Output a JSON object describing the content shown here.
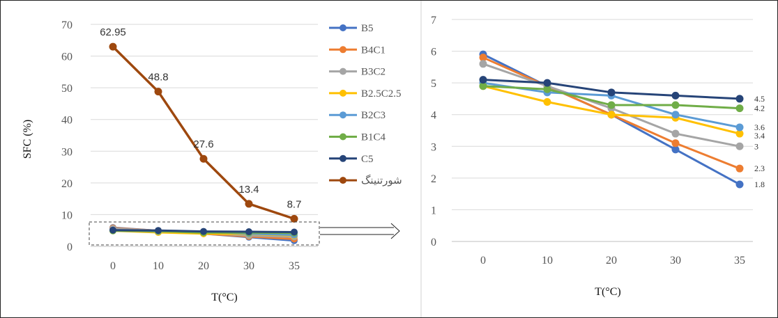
{
  "chart_data": [
    {
      "type": "line",
      "title": "",
      "xlabel": "T(°C)",
      "ylabel": "SFC (%)",
      "categories": [
        "0",
        "10",
        "20",
        "30",
        "35"
      ],
      "yticks": [
        "0",
        "10",
        "20",
        "30",
        "40",
        "50",
        "60",
        "70"
      ],
      "ylim": [
        0,
        70
      ],
      "grid": true,
      "legend_position": "right",
      "series": [
        {
          "name": "B5",
          "color": "#4472C4",
          "values": [
            5.9,
            4.9,
            4.0,
            2.9,
            1.8
          ]
        },
        {
          "name": "B4C1",
          "color": "#ED7D31",
          "values": [
            5.8,
            4.9,
            4.0,
            3.1,
            2.3
          ]
        },
        {
          "name": "B3C2",
          "color": "#A5A5A5",
          "values": [
            5.6,
            4.9,
            4.2,
            3.4,
            3.0
          ]
        },
        {
          "name": "B2.5C2.5",
          "color": "#FFC000",
          "values": [
            4.9,
            4.4,
            4.0,
            3.9,
            3.4
          ]
        },
        {
          "name": "B2C3",
          "color": "#5B9BD5",
          "values": [
            5.0,
            4.7,
            4.6,
            4.0,
            3.6
          ]
        },
        {
          "name": "B1C4",
          "color": "#70AD47",
          "values": [
            4.9,
            4.8,
            4.3,
            4.3,
            4.2
          ]
        },
        {
          "name": "C5",
          "color": "#264478",
          "values": [
            5.1,
            5.0,
            4.7,
            4.6,
            4.5
          ]
        },
        {
          "name": "شورتنینگ",
          "color": "#9E480E",
          "values": [
            62.95,
            48.8,
            27.6,
            13.4,
            8.7
          ],
          "data_labels": [
            "62.95",
            "48.8",
            "27.6",
            "13.4",
            "8.7"
          ]
        }
      ]
    },
    {
      "type": "line",
      "title": "",
      "xlabel": "T(°C)",
      "ylabel": "",
      "categories": [
        "0",
        "10",
        "20",
        "30",
        "35"
      ],
      "yticks": [
        "0",
        "1",
        "2",
        "3",
        "4",
        "5",
        "6",
        "7"
      ],
      "ylim": [
        0,
        7
      ],
      "grid": true,
      "series": [
        {
          "name": "B5",
          "color": "#4472C4",
          "values": [
            5.9,
            4.9,
            4.0,
            2.9,
            1.8
          ],
          "end_label": "1.8"
        },
        {
          "name": "B4C1",
          "color": "#ED7D31",
          "values": [
            5.8,
            4.9,
            4.0,
            3.1,
            2.3
          ],
          "end_label": "2.3"
        },
        {
          "name": "B3C2",
          "color": "#A5A5A5",
          "values": [
            5.6,
            4.9,
            4.2,
            3.4,
            3.0
          ],
          "end_label": "3"
        },
        {
          "name": "B2.5C2.5",
          "color": "#FFC000",
          "values": [
            4.9,
            4.4,
            4.0,
            3.9,
            3.4
          ],
          "end_label": "3.4"
        },
        {
          "name": "B2C3",
          "color": "#5B9BD5",
          "values": [
            5.0,
            4.7,
            4.6,
            4.0,
            3.6
          ],
          "end_label": "3.6"
        },
        {
          "name": "B1C4",
          "color": "#70AD47",
          "values": [
            4.9,
            4.8,
            4.3,
            4.3,
            4.2
          ],
          "end_label": "4.2"
        },
        {
          "name": "C5",
          "color": "#264478",
          "values": [
            5.1,
            5.0,
            4.7,
            4.6,
            4.5
          ],
          "end_label": "4.5"
        }
      ]
    }
  ]
}
